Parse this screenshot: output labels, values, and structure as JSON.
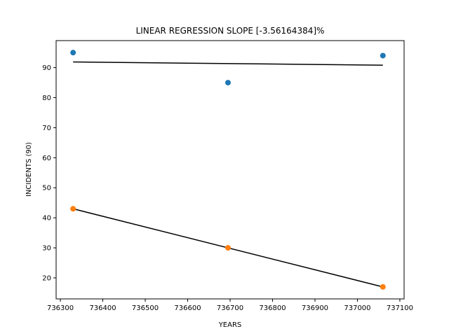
{
  "chart_data": {
    "type": "scatter",
    "title": "LINEAR REGRESSION SLOPE [-3.56164384]%",
    "xlabel": "YEARS",
    "ylabel": "INCIDENTS (90)",
    "xlim": [
      736290,
      737110
    ],
    "ylim": [
      13,
      99
    ],
    "xticks": [
      736300,
      736400,
      736500,
      736600,
      736700,
      736800,
      736900,
      737000,
      737100
    ],
    "yticks": [
      20,
      30,
      40,
      50,
      60,
      70,
      80,
      90
    ],
    "grid": false,
    "series": [
      {
        "color": "#1f77b4",
        "x": [
          736330,
          736695,
          737060
        ],
        "y": [
          95,
          85,
          94
        ],
        "fit": {
          "x": [
            736330,
            737060
          ],
          "y": [
            91.9,
            90.8
          ]
        }
      },
      {
        "color": "#ff7f0e",
        "x": [
          736330,
          736695,
          737060
        ],
        "y": [
          43,
          30,
          17
        ],
        "fit": {
          "x": [
            736330,
            737060
          ],
          "y": [
            43,
            17
          ]
        }
      }
    ],
    "fit_line_color": "#000000"
  }
}
